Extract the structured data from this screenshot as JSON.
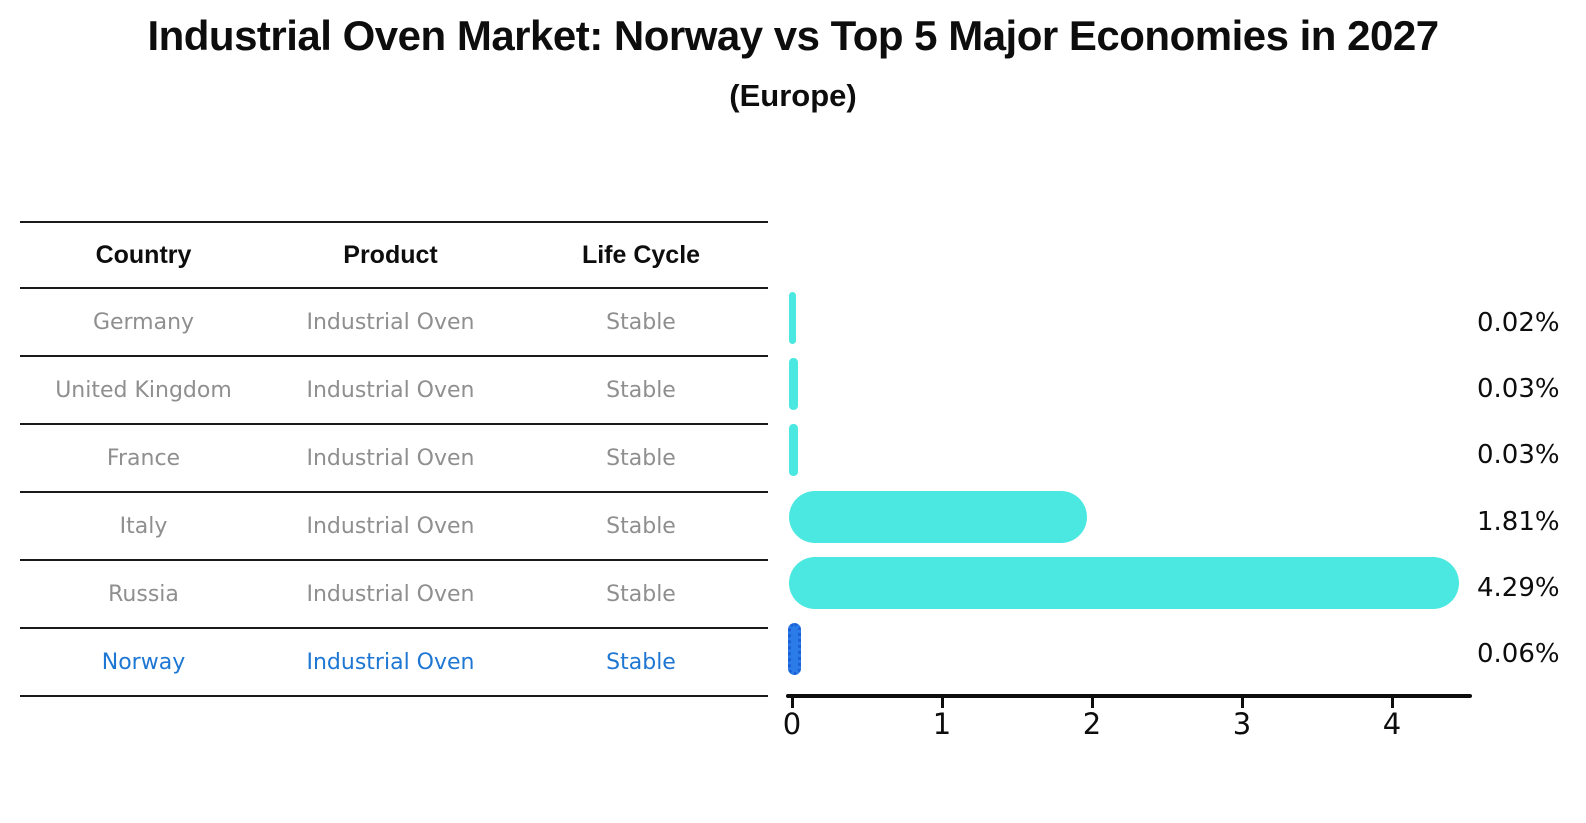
{
  "header": {
    "title": "Industrial Oven Market: Norway vs Top 5 Major Economies in 2027",
    "subtitle": "(Europe)"
  },
  "table": {
    "columns": [
      "Country",
      "Product",
      "Life Cycle"
    ],
    "rows": [
      {
        "country": "Germany",
        "product": "Industrial Oven",
        "life_cycle": "Stable"
      },
      {
        "country": "United Kingdom",
        "product": "Industrial Oven",
        "life_cycle": "Stable"
      },
      {
        "country": "France",
        "product": "Industrial Oven",
        "life_cycle": "Stable"
      },
      {
        "country": "Italy",
        "product": "Industrial Oven",
        "life_cycle": "Stable"
      },
      {
        "country": "Russia",
        "product": "Industrial Oven",
        "life_cycle": "Stable"
      },
      {
        "country": "Norway",
        "product": "Industrial Oven",
        "life_cycle": "Stable"
      }
    ]
  },
  "chart_data": {
    "type": "bar",
    "orientation": "horizontal",
    "title": "Industrial Oven Market: Norway vs Top 5 Major Economies in 2027",
    "subtitle": "(Europe)",
    "categories": [
      "Germany",
      "United Kingdom",
      "France",
      "Italy",
      "Russia",
      "Norway"
    ],
    "values": [
      0.02,
      0.03,
      0.03,
      1.81,
      4.29,
      0.06
    ],
    "value_labels": [
      "0.02%",
      "0.03%",
      "0.03%",
      "1.81%",
      "4.29%",
      "0.06%"
    ],
    "x_ticks": [
      "0",
      "1",
      "2",
      "3",
      "4"
    ],
    "xlim": [
      0,
      4.55
    ],
    "xlabel": "",
    "ylabel": "",
    "grid": false,
    "legend": false,
    "bar_color": "#4ae8e1",
    "highlight_index": 5,
    "highlight_bar_color": "#2b7ce8",
    "highlight_text_color": "#1f77d4",
    "axis_color": "#0d0d0d",
    "table_text_color": "#8f8f8f"
  }
}
